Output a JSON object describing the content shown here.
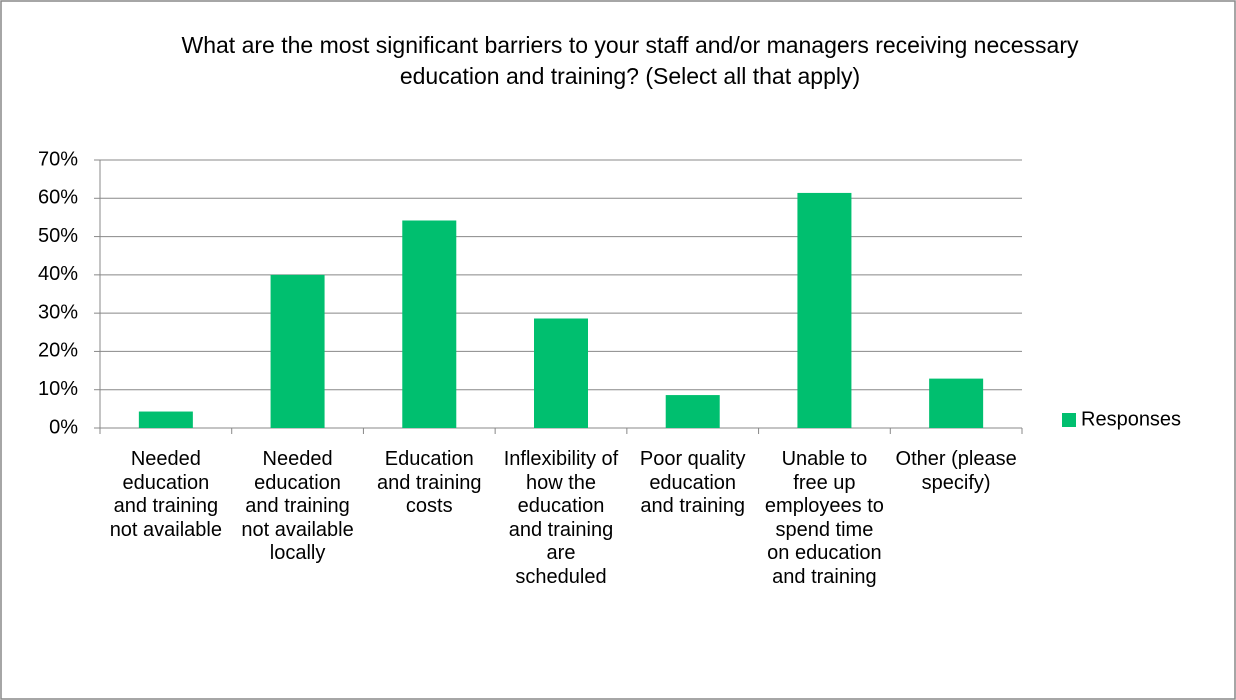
{
  "chart_data": {
    "type": "bar",
    "title": "What are the most significant barriers to your staff and/or managers receiving necessary education and training? (Select all that apply)",
    "categories": [
      "Needed education and training not available",
      "Needed education and training not available locally",
      "Education and training costs",
      "Inflexibility of how the education and training are scheduled",
      "Poor quality education and training",
      "Unable to free up employees to spend time on education and training",
      "Other (please specify)"
    ],
    "series": [
      {
        "name": "Responses",
        "color": "#00bf6f",
        "values": [
          4.3,
          40,
          54.2,
          28.6,
          8.6,
          61.4,
          12.9
        ]
      }
    ],
    "ylim": [
      0,
      70
    ],
    "yticks": [
      {
        "value": 0,
        "label": "0%"
      },
      {
        "value": 10,
        "label": "10%"
      },
      {
        "value": 20,
        "label": "20%"
      },
      {
        "value": 30,
        "label": "30%"
      },
      {
        "value": 40,
        "label": "40%"
      },
      {
        "value": 50,
        "label": "50%"
      },
      {
        "value": 60,
        "label": "60%"
      },
      {
        "value": 70,
        "label": "70%"
      }
    ],
    "grid": true,
    "legend": "right"
  }
}
